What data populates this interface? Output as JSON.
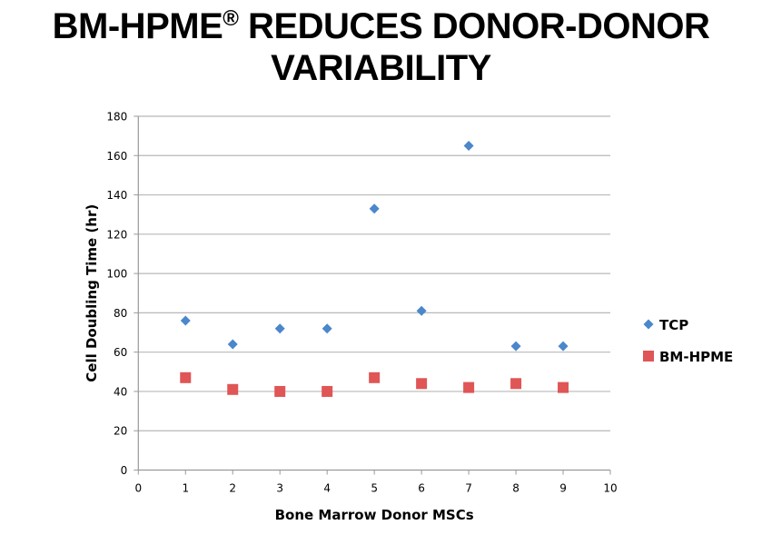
{
  "page": {
    "title_main": "BM-HPME",
    "title_mark": "®",
    "title_rest": " REDUCES DONOR-DONOR",
    "title_line2": "VARIABILITY"
  },
  "chart_data": {
    "type": "scatter",
    "title": "BM-HPME® REDUCES DONOR-DONOR VARIABILITY",
    "xlabel": "Bone Marrow Donor MSCs",
    "ylabel": "Cell Doubling Time (hr)",
    "xlim": [
      0,
      10
    ],
    "ylim": [
      0,
      180
    ],
    "xticks": [
      0,
      1,
      2,
      3,
      4,
      5,
      6,
      7,
      8,
      9,
      10
    ],
    "yticks": [
      0,
      20,
      40,
      60,
      80,
      100,
      120,
      140,
      160,
      180
    ],
    "grid": "horizontal",
    "legend_position": "right",
    "series": [
      {
        "name": "TCP",
        "marker": "diamond",
        "color": "#4a87cb",
        "x": [
          1,
          2,
          3,
          4,
          5,
          6,
          7,
          8,
          9
        ],
        "y": [
          76,
          64,
          72,
          72,
          133,
          81,
          165,
          63,
          63
        ]
      },
      {
        "name": "BM-HPME",
        "marker": "square",
        "color": "#e05555",
        "x": [
          1,
          2,
          3,
          4,
          5,
          6,
          7,
          8,
          9
        ],
        "y": [
          47,
          41,
          40,
          40,
          47,
          44,
          42,
          44,
          42
        ]
      }
    ]
  }
}
